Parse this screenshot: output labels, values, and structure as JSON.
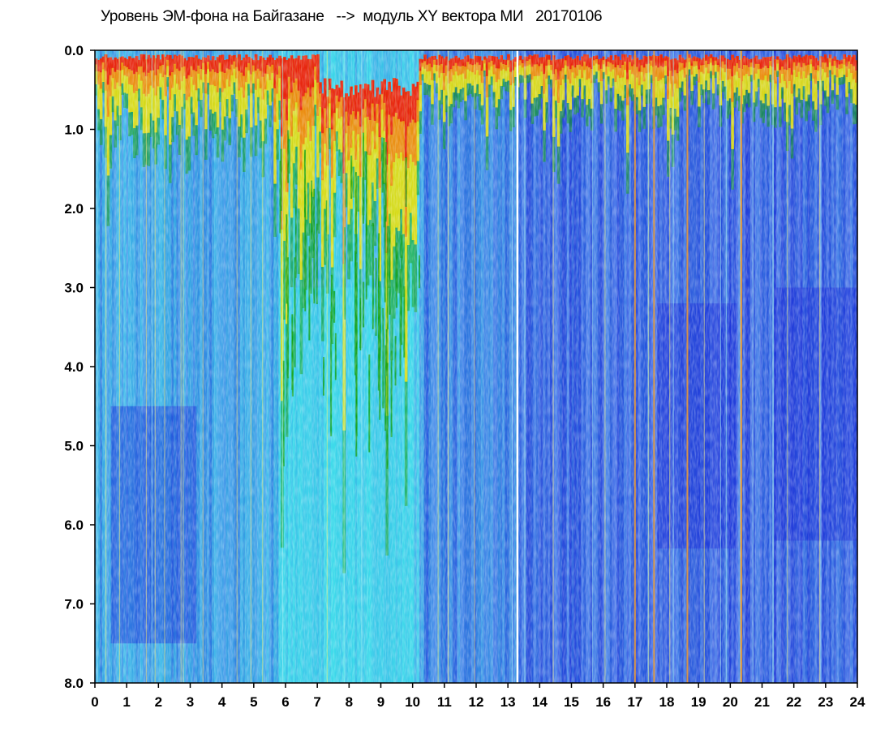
{
  "chart_data": {
    "type": "heatmap",
    "title": "Уровень ЭМ-фона на Байгазане   -->  модуль XY вектора МИ   20170106",
    "xlabel": "",
    "ylabel": "",
    "xlim": [
      0,
      24
    ],
    "ylim": [
      0,
      8
    ],
    "y_inverted": true,
    "grid": false,
    "x_ticks": [
      "0",
      "1",
      "2",
      "3",
      "4",
      "5",
      "6",
      "7",
      "8",
      "9",
      "10",
      "11",
      "12",
      "13",
      "14",
      "15",
      "16",
      "17",
      "18",
      "19",
      "20",
      "21",
      "22",
      "23",
      "24"
    ],
    "y_ticks": [
      "0.0",
      "1.0",
      "2.0",
      "3.0",
      "4.0",
      "5.0",
      "6.0",
      "7.0",
      "8.0"
    ],
    "color_scale": [
      "#1a2bd6",
      "#5a78ee",
      "#3fe0ea",
      "#12a012",
      "#f7e414",
      "#f07a10",
      "#e81a10"
    ],
    "background_color": "#3a55e0",
    "white_gap_hour": 13.3,
    "orange_lines_hours": [
      17.0,
      17.6,
      18.65,
      20.35
    ]
  }
}
